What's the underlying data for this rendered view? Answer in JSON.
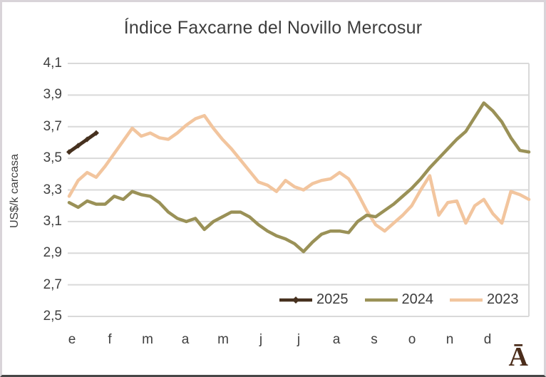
{
  "title": "Índice Faxcarne del Novillo Mercosur",
  "watermark": "Ā",
  "y_axis": {
    "label": "US$/k carcasa",
    "tick_labels": [
      "4,1",
      "3,9",
      "3,7",
      "3,5",
      "3,3",
      "3,1",
      "2,9",
      "2,7",
      "2,5"
    ],
    "tick_values": [
      4.1,
      3.9,
      3.7,
      3.5,
      3.3,
      3.1,
      2.9,
      2.7,
      2.5
    ]
  },
  "x_axis": {
    "labels": [
      "e",
      "f",
      "m",
      "a",
      "m",
      "j",
      "j",
      "a",
      "s",
      "o",
      "n",
      "d"
    ]
  },
  "colors": {
    "series_2025": "#46311f",
    "series_2024": "#9a9157",
    "series_2023": "#f2c59e",
    "grid": "#d9d9d9",
    "text": "#404040"
  },
  "chart_data": {
    "type": "line",
    "title": "Índice Faxcarne del Novillo Mercosur",
    "xlabel": "",
    "ylabel": "US$/k carcasa",
    "ylim": [
      2.5,
      4.1
    ],
    "ytick_interval": 0.2,
    "decimal_separator": ",",
    "grid": "horizontal",
    "legend_position": "inside-bottom-right",
    "x_categories_months": [
      "e",
      "f",
      "m",
      "a",
      "m",
      "j",
      "j",
      "a",
      "s",
      "o",
      "n",
      "d"
    ],
    "x_resolution": "weekly (52 points per year)",
    "series": [
      {
        "name": "2025",
        "color": "#46311f",
        "marker": "diamond",
        "values": [
          3.54,
          3.58,
          3.62,
          3.66
        ]
      },
      {
        "name": "2024",
        "color": "#9a9157",
        "marker": "none",
        "values": [
          3.22,
          3.19,
          3.23,
          3.21,
          3.21,
          3.26,
          3.24,
          3.29,
          3.27,
          3.26,
          3.22,
          3.16,
          3.12,
          3.1,
          3.12,
          3.05,
          3.1,
          3.13,
          3.16,
          3.16,
          3.13,
          3.08,
          3.04,
          3.01,
          2.99,
          2.96,
          2.91,
          2.97,
          3.02,
          3.04,
          3.04,
          3.03,
          3.1,
          3.14,
          3.13,
          3.17,
          3.21,
          3.26,
          3.31,
          3.37,
          3.44,
          3.5,
          3.56,
          3.62,
          3.67,
          3.76,
          3.85,
          3.8,
          3.73,
          3.63,
          3.55,
          3.54
        ]
      },
      {
        "name": "2023",
        "color": "#f2c59e",
        "marker": "none",
        "values": [
          3.26,
          3.36,
          3.41,
          3.38,
          3.45,
          3.53,
          3.61,
          3.69,
          3.64,
          3.66,
          3.63,
          3.62,
          3.66,
          3.71,
          3.75,
          3.77,
          3.69,
          3.62,
          3.56,
          3.49,
          3.42,
          3.35,
          3.33,
          3.29,
          3.36,
          3.32,
          3.3,
          3.34,
          3.36,
          3.37,
          3.41,
          3.37,
          3.28,
          3.17,
          3.08,
          3.04,
          3.09,
          3.14,
          3.2,
          3.3,
          3.39,
          3.14,
          3.22,
          3.23,
          3.09,
          3.2,
          3.24,
          3.15,
          3.09,
          3.29,
          3.27,
          3.24
        ]
      }
    ]
  }
}
